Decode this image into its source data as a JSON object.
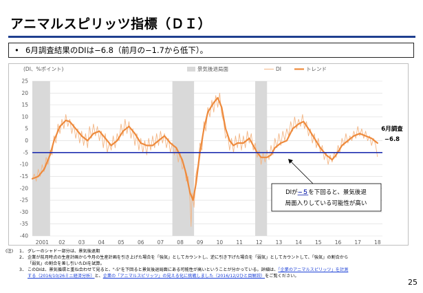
{
  "title": "アニマルスピリッツ指標（ＤＩ）",
  "summary": {
    "bullet": "•",
    "text": "6月調査結果のDIは−6.8（前月の−1.7から低下）。"
  },
  "colors": {
    "di": "#f3b584",
    "trend": "#ee8a3c",
    "threshold": "#1f2fb0",
    "recession": "#d9d9d9",
    "grid": "#d9d9d9",
    "text": "#595959",
    "link": "#1a3fd6"
  },
  "chart_data": {
    "type": "line",
    "ylabel": "(DI、%ポイント)",
    "ylim": [
      -40,
      25
    ],
    "yticks": [
      25,
      20,
      15,
      10,
      5,
      0,
      -5,
      -10,
      -15,
      -20,
      -25,
      -30,
      -35,
      -40
    ],
    "xlim": [
      2001.0,
      2018.75
    ],
    "xticks": [
      {
        "x": 2001.5,
        "label": "2001"
      },
      {
        "x": 2002.5,
        "label": "02"
      },
      {
        "x": 2003.5,
        "label": "03"
      },
      {
        "x": 2004.5,
        "label": "04"
      },
      {
        "x": 2005.5,
        "label": "05"
      },
      {
        "x": 2006.5,
        "label": "06"
      },
      {
        "x": 2007.5,
        "label": "07"
      },
      {
        "x": 2008.5,
        "label": "08"
      },
      {
        "x": 2009.5,
        "label": "09"
      },
      {
        "x": 2010.5,
        "label": "10"
      },
      {
        "x": 2011.5,
        "label": "11"
      },
      {
        "x": 2012.5,
        "label": "12"
      },
      {
        "x": 2013.5,
        "label": "13"
      },
      {
        "x": 2014.5,
        "label": "14"
      },
      {
        "x": 2015.5,
        "label": "15"
      },
      {
        "x": 2016.5,
        "label": "16"
      },
      {
        "x": 2017.5,
        "label": "17"
      },
      {
        "x": 2018.5,
        "label": "18"
      }
    ],
    "legend": [
      {
        "key": "recession",
        "label": "景気後退局面"
      },
      {
        "key": "di",
        "label": "DI"
      },
      {
        "key": "trend",
        "label": "トレンド"
      }
    ],
    "legend_position": "top",
    "recession_periods": [
      [
        2001.0,
        2001.9
      ],
      [
        2008.1,
        2009.2
      ],
      [
        2012.3,
        2012.9
      ]
    ],
    "threshold": -5,
    "series": [
      {
        "name": "トレンド",
        "points": [
          [
            2001.0,
            -16
          ],
          [
            2001.3,
            -15
          ],
          [
            2001.6,
            -12
          ],
          [
            2001.9,
            -6
          ],
          [
            2002.1,
            0
          ],
          [
            2002.4,
            6
          ],
          [
            2002.7,
            8.5
          ],
          [
            2002.9,
            8
          ],
          [
            2003.2,
            5
          ],
          [
            2003.5,
            2
          ],
          [
            2003.8,
            0
          ],
          [
            2004.1,
            3
          ],
          [
            2004.4,
            4
          ],
          [
            2004.7,
            1
          ],
          [
            2005.0,
            -2
          ],
          [
            2005.3,
            0
          ],
          [
            2005.6,
            4
          ],
          [
            2005.9,
            6
          ],
          [
            2006.2,
            3
          ],
          [
            2006.5,
            -1
          ],
          [
            2006.8,
            -2
          ],
          [
            2007.1,
            -2
          ],
          [
            2007.4,
            0
          ],
          [
            2007.7,
            2
          ],
          [
            2008.0,
            -1
          ],
          [
            2008.3,
            -3
          ],
          [
            2008.6,
            -8
          ],
          [
            2008.8,
            -14
          ],
          [
            2009.0,
            -22
          ],
          [
            2009.15,
            -25
          ],
          [
            2009.3,
            -18
          ],
          [
            2009.5,
            -5
          ],
          [
            2009.7,
            5
          ],
          [
            2009.9,
            12
          ],
          [
            2010.2,
            16
          ],
          [
            2010.4,
            18
          ],
          [
            2010.6,
            14
          ],
          [
            2010.8,
            5
          ],
          [
            2011.0,
            0
          ],
          [
            2011.2,
            -2
          ],
          [
            2011.4,
            -1
          ],
          [
            2011.7,
            -1
          ],
          [
            2012.0,
            1
          ],
          [
            2012.2,
            -2
          ],
          [
            2012.4,
            -5
          ],
          [
            2012.6,
            -7
          ],
          [
            2012.9,
            -7
          ],
          [
            2013.1,
            -6
          ],
          [
            2013.3,
            -3
          ],
          [
            2013.6,
            -1
          ],
          [
            2013.9,
            0
          ],
          [
            2014.2,
            5
          ],
          [
            2014.5,
            7
          ],
          [
            2014.75,
            8
          ],
          [
            2015.0,
            5
          ],
          [
            2015.3,
            1
          ],
          [
            2015.6,
            -3
          ],
          [
            2015.9,
            -6
          ],
          [
            2016.2,
            -8
          ],
          [
            2016.4,
            -6
          ],
          [
            2016.7,
            -2
          ],
          [
            2017.0,
            0
          ],
          [
            2017.3,
            2
          ],
          [
            2017.6,
            3
          ],
          [
            2017.9,
            2
          ],
          [
            2018.2,
            1
          ],
          [
            2018.5,
            -1
          ]
        ]
      },
      {
        "name": "DI",
        "points": [
          [
            2001.0,
            -16
          ],
          [
            2001.1,
            -14
          ],
          [
            2001.2,
            -17
          ],
          [
            2001.3,
            -12
          ],
          [
            2001.4,
            -15
          ],
          [
            2001.5,
            -10
          ],
          [
            2001.6,
            -13
          ],
          [
            2001.7,
            -7
          ],
          [
            2001.8,
            -10
          ],
          [
            2001.9,
            -4
          ],
          [
            2002.0,
            -6
          ],
          [
            2002.1,
            2
          ],
          [
            2002.2,
            -1
          ],
          [
            2002.3,
            7
          ],
          [
            2002.4,
            3
          ],
          [
            2002.5,
            9
          ],
          [
            2002.6,
            5
          ],
          [
            2002.7,
            11
          ],
          [
            2002.8,
            6
          ],
          [
            2002.9,
            9
          ],
          [
            2003.0,
            3
          ],
          [
            2003.1,
            7
          ],
          [
            2003.2,
            1
          ],
          [
            2003.3,
            5
          ],
          [
            2003.4,
            -1
          ],
          [
            2003.5,
            4
          ],
          [
            2003.6,
            -2
          ],
          [
            2003.7,
            3
          ],
          [
            2003.8,
            -3
          ],
          [
            2003.9,
            6
          ],
          [
            2004.0,
            1
          ],
          [
            2004.1,
            7
          ],
          [
            2004.2,
            2
          ],
          [
            2004.3,
            6
          ],
          [
            2004.4,
            0
          ],
          [
            2004.5,
            4
          ],
          [
            2004.6,
            -3
          ],
          [
            2004.7,
            3
          ],
          [
            2004.8,
            -5
          ],
          [
            2004.9,
            -1
          ],
          [
            2005.0,
            -4
          ],
          [
            2005.1,
            2
          ],
          [
            2005.2,
            -3
          ],
          [
            2005.3,
            3
          ],
          [
            2005.4,
            0
          ],
          [
            2005.5,
            7
          ],
          [
            2005.6,
            2
          ],
          [
            2005.7,
            9
          ],
          [
            2005.8,
            3
          ],
          [
            2005.9,
            8
          ],
          [
            2006.0,
            1
          ],
          [
            2006.1,
            5
          ],
          [
            2006.2,
            -2
          ],
          [
            2006.3,
            3
          ],
          [
            2006.4,
            -4
          ],
          [
            2006.5,
            1
          ],
          [
            2006.6,
            -5
          ],
          [
            2006.7,
            0
          ],
          [
            2006.8,
            -6
          ],
          [
            2006.9,
            1
          ],
          [
            2007.0,
            -4
          ],
          [
            2007.1,
            2
          ],
          [
            2007.2,
            -3
          ],
          [
            2007.3,
            3
          ],
          [
            2007.4,
            -2
          ],
          [
            2007.5,
            4
          ],
          [
            2007.6,
            -1
          ],
          [
            2007.7,
            3
          ],
          [
            2007.8,
            -3
          ],
          [
            2007.9,
            1
          ],
          [
            2008.0,
            -5
          ],
          [
            2008.1,
            -1
          ],
          [
            2008.2,
            -6
          ],
          [
            2008.3,
            -3
          ],
          [
            2008.4,
            -9
          ],
          [
            2008.5,
            -5
          ],
          [
            2008.6,
            -12
          ],
          [
            2008.7,
            -10
          ],
          [
            2008.8,
            -17
          ],
          [
            2008.9,
            -15
          ],
          [
            2009.0,
            -26
          ],
          [
            2009.05,
            -36
          ],
          [
            2009.1,
            -22
          ],
          [
            2009.2,
            -28
          ],
          [
            2009.3,
            -14
          ],
          [
            2009.4,
            -10
          ],
          [
            2009.5,
            -1
          ],
          [
            2009.6,
            -4
          ],
          [
            2009.7,
            8
          ],
          [
            2009.8,
            4
          ],
          [
            2009.9,
            14
          ],
          [
            2010.0,
            10
          ],
          [
            2010.1,
            17
          ],
          [
            2010.2,
            12
          ],
          [
            2010.3,
            19
          ],
          [
            2010.4,
            14
          ],
          [
            2010.5,
            20
          ],
          [
            2010.6,
            11
          ],
          [
            2010.7,
            8
          ],
          [
            2010.8,
            1
          ],
          [
            2010.9,
            3
          ],
          [
            2011.0,
            -4
          ],
          [
            2011.1,
            1
          ],
          [
            2011.2,
            -5
          ],
          [
            2011.3,
            2
          ],
          [
            2011.4,
            -3
          ],
          [
            2011.5,
            3
          ],
          [
            2011.6,
            -4
          ],
          [
            2011.7,
            2
          ],
          [
            2011.8,
            -3
          ],
          [
            2011.9,
            4
          ],
          [
            2012.0,
            -1
          ],
          [
            2012.1,
            3
          ],
          [
            2012.2,
            -4
          ],
          [
            2012.3,
            -1
          ],
          [
            2012.4,
            -7
          ],
          [
            2012.5,
            -4
          ],
          [
            2012.6,
            -10
          ],
          [
            2012.7,
            -5
          ],
          [
            2012.8,
            -9
          ],
          [
            2012.9,
            -4
          ],
          [
            2013.0,
            -8
          ],
          [
            2013.1,
            -2
          ],
          [
            2013.2,
            -6
          ],
          [
            2013.3,
            1
          ],
          [
            2013.4,
            -3
          ],
          [
            2013.5,
            3
          ],
          [
            2013.6,
            -2
          ],
          [
            2013.7,
            4
          ],
          [
            2013.8,
            0
          ],
          [
            2013.9,
            5
          ],
          [
            2014.0,
            2
          ],
          [
            2014.1,
            8
          ],
          [
            2014.2,
            4
          ],
          [
            2014.3,
            10
          ],
          [
            2014.4,
            5
          ],
          [
            2014.5,
            9
          ],
          [
            2014.6,
            6
          ],
          [
            2014.7,
            11
          ],
          [
            2014.8,
            5
          ],
          [
            2014.9,
            8
          ],
          [
            2015.0,
            2
          ],
          [
            2015.1,
            5
          ],
          [
            2015.2,
            -1
          ],
          [
            2015.3,
            3
          ],
          [
            2015.4,
            -3
          ],
          [
            2015.5,
            1
          ],
          [
            2015.6,
            -5
          ],
          [
            2015.7,
            -2
          ],
          [
            2015.8,
            -8
          ],
          [
            2015.9,
            -5
          ],
          [
            2016.0,
            -10
          ],
          [
            2016.1,
            -6
          ],
          [
            2016.2,
            -9
          ],
          [
            2016.3,
            -5
          ],
          [
            2016.4,
            -7
          ],
          [
            2016.5,
            -2
          ],
          [
            2016.6,
            -5
          ],
          [
            2016.7,
            1
          ],
          [
            2016.8,
            -2
          ],
          [
            2016.9,
            3
          ],
          [
            2017.0,
            -1
          ],
          [
            2017.1,
            2
          ],
          [
            2017.2,
            0
          ],
          [
            2017.3,
            4
          ],
          [
            2017.4,
            1
          ],
          [
            2017.5,
            6
          ],
          [
            2017.6,
            2
          ],
          [
            2017.7,
            5
          ],
          [
            2017.8,
            1
          ],
          [
            2017.9,
            4
          ],
          [
            2018.0,
            0
          ],
          [
            2018.1,
            2
          ],
          [
            2018.2,
            -2
          ],
          [
            2018.3,
            1
          ],
          [
            2018.4,
            -1.7
          ],
          [
            2018.5,
            -6.8
          ]
        ]
      }
    ],
    "annotations": {
      "latest_label": "6月調査",
      "latest_value": "−6.8",
      "callout_lines": [
        [
          {
            "t": "DIが",
            "s": "normal"
          },
          {
            "t": "−５",
            "s": "emph"
          },
          {
            "t": "を下回ると、景気後退",
            "s": "normal"
          }
        ],
        [
          {
            "t": "局面入りしている可能性が高い",
            "s": "normal"
          }
        ]
      ]
    }
  },
  "notes": {
    "label": "(注)",
    "items": [
      {
        "num": "1．",
        "parts": [
          {
            "t": "グレーのシャドー部分は、景気後退期",
            "link": false
          }
        ]
      },
      {
        "num": "2．",
        "parts": [
          {
            "t": "企業が前月時点の生産計画から今月の生産計画を引き上げた場合を「強気」としてカウントし、逆に引き下げた場合を「弱気」としてカウントして、「強気」の割合から",
            "link": false
          }
        ]
      },
      {
        "num": "",
        "parts": [
          {
            "t": "「弱気」の割合を差し引いたDIを試算。",
            "link": false
          }
        ]
      },
      {
        "num": "3．",
        "parts": [
          {
            "t": "このDIは、景気循環と重ね合わせて見ると、\"-5\"を下回ると景気後退局面にある可能性が高いということが分かっている。詳細は、",
            "link": false
          },
          {
            "t": "「企業のアニマルスピリッツ」を計測",
            "link": true
          }
        ]
      },
      {
        "num": "",
        "parts": [
          {
            "t": "する（2016/10/26ミニ経済分析）",
            "link": true
          },
          {
            "t": "と、",
            "link": false
          },
          {
            "t": "企業の「アニマルスピリッツ」の見える化に挑戦しました（2016/12/2ひと目解説）",
            "link": true
          },
          {
            "t": "をご覧ください。",
            "link": false
          }
        ]
      }
    ]
  },
  "page_number": "25"
}
